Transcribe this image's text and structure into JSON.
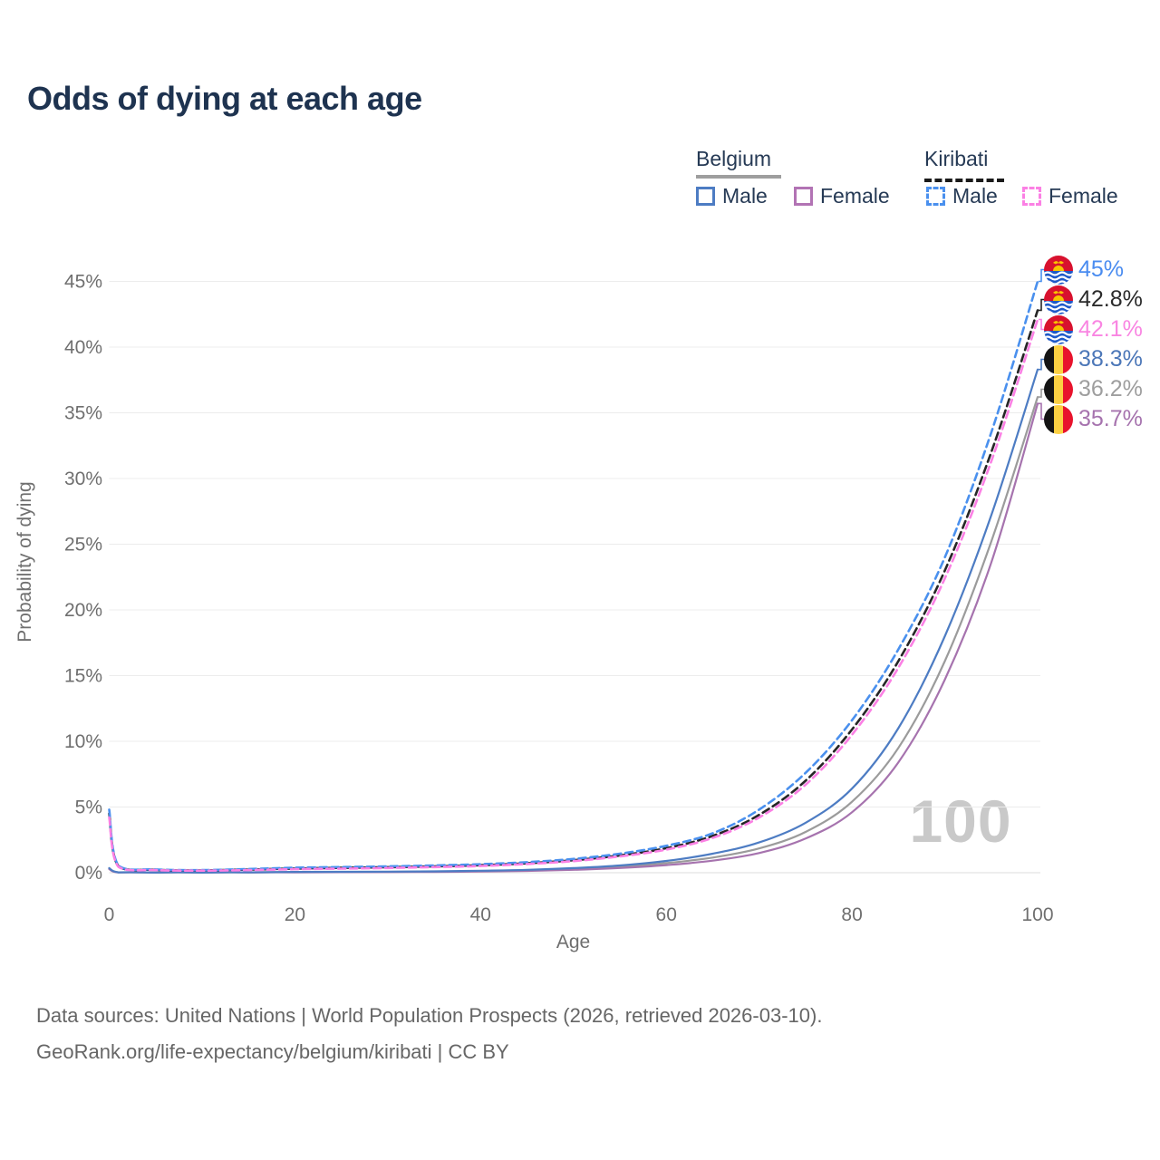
{
  "title": "Odds of dying at each age",
  "accent_colors": {
    "title_text": "#1e3350",
    "axis_text": "#6f6f6f",
    "gridline": "#ececec",
    "watermark": "#c9c9c9",
    "footer_text": "#666666"
  },
  "legend": {
    "groups": [
      {
        "name": "Belgium",
        "line_style": "solid",
        "underline_color": "#9e9e9e",
        "items": [
          {
            "label": "Male",
            "color": "#4d7cc3"
          },
          {
            "label": "Female",
            "color": "#b273b4"
          }
        ]
      },
      {
        "name": "Kiribati",
        "line_style": "dashed",
        "underline_color": "#1a1a1a",
        "items": [
          {
            "label": "Male",
            "color": "#4a90ee"
          },
          {
            "label": "Female",
            "color": "#fb80e4"
          }
        ]
      }
    ]
  },
  "watermark": "100",
  "footer": {
    "line1": "Data sources: United Nations | World Population Prospects (2026, retrieved 2026-03-10).",
    "line2": "GeoRank.org/life-expectancy/belgium/kiribati | CC BY"
  },
  "chart_data": {
    "type": "line",
    "title": "Odds of dying at each age",
    "xlabel": "Age",
    "ylabel": "Probability of dying",
    "xlim": [
      0,
      100
    ],
    "ylim": [
      0,
      45
    ],
    "x_ticks": [
      0,
      20,
      40,
      60,
      80,
      100
    ],
    "y_ticks": [
      0,
      5,
      10,
      15,
      20,
      25,
      30,
      35,
      40,
      45
    ],
    "y_tick_suffix": "%",
    "grid": "horizontal",
    "legend_position": "top-right",
    "x": [
      0,
      1,
      5,
      10,
      15,
      20,
      25,
      30,
      35,
      40,
      45,
      50,
      55,
      60,
      65,
      70,
      75,
      80,
      85,
      90,
      95,
      100
    ],
    "series": [
      {
        "name": "Belgium Both sexes",
        "country": "Belgium",
        "sex": "Both",
        "color": "#9b9b9b",
        "dashed": false,
        "flag": "belgium",
        "end_value": 36.2,
        "end_label": "36.2%",
        "end_label_color": "#9e9e9e",
        "values": [
          0.3,
          0.025,
          0.01,
          0.01,
          0.025,
          0.045,
          0.055,
          0.065,
          0.085,
          0.12,
          0.18,
          0.28,
          0.45,
          0.73,
          1.15,
          1.85,
          3.1,
          5.4,
          9.5,
          16.1,
          25.2,
          36.2
        ]
      },
      {
        "name": "Belgium Female",
        "country": "Belgium",
        "sex": "Female",
        "color": "#a673ae",
        "dashed": false,
        "flag": "belgium",
        "end_value": 35.7,
        "end_label": "35.7%",
        "end_label_color": "#a673ae",
        "values": [
          0.28,
          0.02,
          0.008,
          0.008,
          0.02,
          0.03,
          0.04,
          0.05,
          0.06,
          0.09,
          0.14,
          0.22,
          0.36,
          0.58,
          0.92,
          1.5,
          2.6,
          4.6,
          8.4,
          14.7,
          23.6,
          35.7
        ]
      },
      {
        "name": "Belgium Male",
        "country": "Belgium",
        "sex": "Male",
        "color": "#4d7cc3",
        "dashed": false,
        "flag": "belgium",
        "end_value": 38.3,
        "end_label": "38.3%",
        "end_label_color": "#4c77b8",
        "values": [
          0.35,
          0.03,
          0.01,
          0.01,
          0.03,
          0.06,
          0.07,
          0.08,
          0.1,
          0.15,
          0.22,
          0.35,
          0.55,
          0.9,
          1.45,
          2.3,
          3.8,
          6.4,
          11.0,
          18.0,
          27.2,
          38.3
        ]
      },
      {
        "name": "Kiribati Both sexes",
        "country": "Kiribati",
        "sex": "Both",
        "color": "#262626",
        "dashed": true,
        "flag": "kiribati",
        "end_value": 42.8,
        "end_label": "42.8%",
        "end_label_color": "#2b2b2b",
        "values": [
          4.5,
          0.5,
          0.22,
          0.18,
          0.24,
          0.32,
          0.37,
          0.42,
          0.48,
          0.57,
          0.72,
          0.95,
          1.32,
          1.87,
          2.8,
          4.4,
          7.0,
          10.9,
          16.1,
          23.0,
          32.0,
          42.8
        ]
      },
      {
        "name": "Kiribati Male",
        "country": "Kiribati",
        "sex": "Male",
        "color": "#4a90ee",
        "dashed": true,
        "flag": "kiribati",
        "end_value": 45.0,
        "end_label": "45%",
        "end_label_color": "#4a8cf0",
        "values": [
          4.8,
          0.55,
          0.25,
          0.2,
          0.28,
          0.38,
          0.43,
          0.48,
          0.55,
          0.65,
          0.8,
          1.05,
          1.45,
          2.05,
          3.0,
          4.8,
          7.6,
          11.6,
          17.0,
          24.0,
          33.5,
          45.0
        ]
      },
      {
        "name": "Kiribati Female",
        "country": "Kiribati",
        "sex": "Female",
        "color": "#fb80e4",
        "dashed": true,
        "flag": "kiribati",
        "end_value": 42.1,
        "end_label": "42.1%",
        "end_label_color": "#f985e2",
        "values": [
          4.2,
          0.45,
          0.2,
          0.16,
          0.2,
          0.27,
          0.31,
          0.36,
          0.43,
          0.51,
          0.66,
          0.88,
          1.24,
          1.76,
          2.65,
          4.2,
          6.7,
          10.5,
          15.6,
          22.4,
          31.3,
          42.1
        ]
      }
    ]
  }
}
